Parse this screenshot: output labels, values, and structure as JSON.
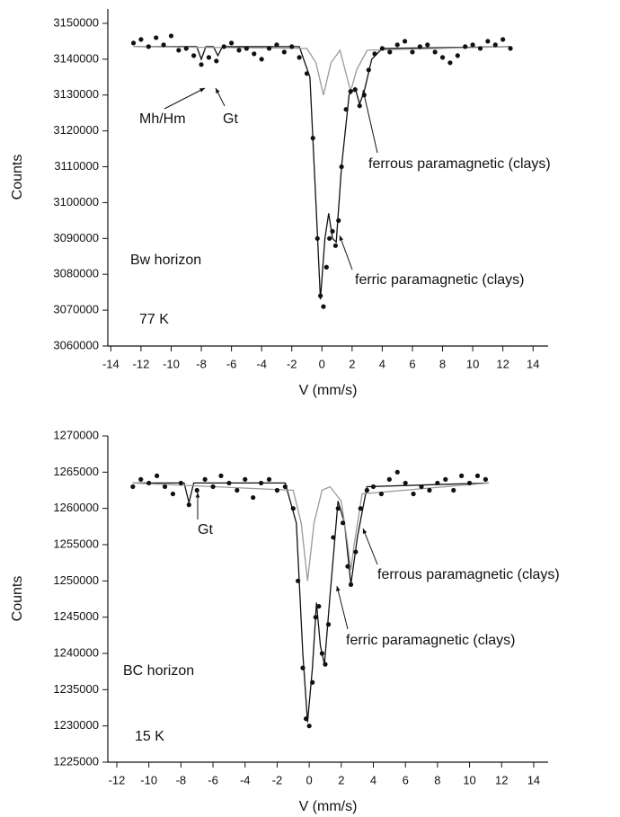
{
  "chart_data": [
    {
      "type": "scatter",
      "x_label": "V (mm/s)",
      "y_label": "Counts",
      "xlim": [
        -14.2,
        15
      ],
      "ylim": [
        3060000,
        3154000
      ],
      "xticks": [
        -14,
        -12,
        -10,
        -8,
        -6,
        -4,
        -2,
        0,
        2,
        4,
        6,
        8,
        10,
        12,
        14
      ],
      "yticks": [
        3060000,
        3070000,
        3080000,
        3090000,
        3100000,
        3110000,
        3120000,
        3130000,
        3140000,
        3150000
      ],
      "annotations": [
        "Mh/Hm",
        "Gt",
        "ferrous paramagnetic (clays)",
        "ferric paramagnetic (clays)",
        "Bw horizon",
        "77 K"
      ],
      "series": [
        {
          "color": "#111111",
          "x": [
            -12.5,
            -12,
            -11.5,
            -11,
            -10.5,
            -10,
            -9.5,
            -9,
            -8.5,
            -8,
            -7.5,
            -7,
            -6.5,
            -6,
            -5.5,
            -5,
            -4.5,
            -4,
            -3.5,
            -3,
            -2.5,
            -2,
            -1.5,
            -1,
            -0.6,
            -0.3,
            -0.1,
            0.1,
            0.3,
            0.5,
            0.7,
            0.9,
            1.1,
            1.3,
            1.6,
            1.9,
            2.2,
            2.5,
            2.8,
            3.1,
            3.5,
            4,
            4.5,
            5,
            5.5,
            6,
            6.5,
            7,
            7.5,
            8,
            8.5,
            9,
            9.5,
            10,
            10.5,
            11,
            11.5,
            12,
            12.5
          ],
          "values": [
            3144500,
            3145500,
            3143500,
            3146000,
            3144000,
            3146500,
            3142500,
            3143000,
            3141000,
            3138500,
            3140500,
            3139500,
            3143500,
            3144500,
            3142500,
            3143000,
            3141500,
            3140000,
            3143000,
            3144000,
            3142000,
            3143500,
            3140500,
            3136000,
            3118000,
            3090000,
            3074000,
            3071000,
            3082000,
            3090000,
            3092000,
            3088000,
            3095000,
            3110000,
            3126000,
            3131000,
            3131500,
            3127000,
            3130000,
            3137000,
            3141500,
            3143000,
            3142000,
            3144000,
            3145000,
            3142000,
            3143500,
            3144000,
            3142000,
            3140500,
            3139000,
            3141000,
            3143500,
            3144000,
            3143000,
            3145000,
            3144000,
            3145500,
            3143000
          ]
        },
        {
          "color": "#111111",
          "line": true,
          "x": [
            -12.5,
            -8.3,
            -8,
            -7.7,
            -7.2,
            -6.9,
            -6.6,
            -1.5,
            -0.8,
            -0.4,
            -0.1,
            0.2,
            0.45,
            0.7,
            0.95,
            1.3,
            1.8,
            2.2,
            2.5,
            2.8,
            3.3,
            4,
            12.5
          ],
          "values": [
            3143500,
            3143500,
            3140000,
            3143500,
            3143500,
            3141000,
            3143500,
            3143500,
            3135000,
            3100000,
            3073000,
            3090000,
            3097000,
            3090000,
            3089000,
            3110000,
            3130000,
            3132000,
            3127500,
            3131000,
            3140000,
            3143000,
            3143500
          ]
        },
        {
          "color": "#9a9a9a",
          "line": true,
          "x": [
            -12.5,
            -1,
            -0.4,
            0.1,
            0.6,
            1.2,
            1.6,
            1.9,
            2.3,
            3,
            12.5
          ],
          "values": [
            3143500,
            3143000,
            3139000,
            3130000,
            3139000,
            3142500,
            3136000,
            3131000,
            3137000,
            3142500,
            3143500
          ]
        }
      ]
    },
    {
      "type": "scatter",
      "x_label": "V (mm/s)",
      "y_label": "Counts",
      "xlim": [
        -12.56,
        14.9
      ],
      "ylim": [
        1225000,
        1270000
      ],
      "xticks": [
        -12,
        -10,
        -8,
        -6,
        -4,
        -2,
        0,
        2,
        4,
        6,
        8,
        10,
        12,
        14
      ],
      "yticks": [
        1225000,
        1230000,
        1235000,
        1240000,
        1245000,
        1250000,
        1255000,
        1260000,
        1265000,
        1270000
      ],
      "annotations": [
        "Gt",
        "ferrous paramagnetic (clays)",
        "ferric paramagnetic (clays)",
        "BC horizon",
        "15 K"
      ],
      "series": [
        {
          "color": "#111111",
          "x": [
            -11,
            -10.5,
            -10,
            -9.5,
            -9,
            -8.5,
            -8,
            -7.5,
            -7,
            -6.5,
            -6,
            -5.5,
            -5,
            -4.5,
            -4,
            -3.5,
            -3,
            -2.5,
            -2,
            -1.5,
            -1,
            -0.7,
            -0.4,
            -0.2,
            0,
            0.2,
            0.4,
            0.6,
            0.8,
            1,
            1.2,
            1.5,
            1.8,
            2.1,
            2.4,
            2.6,
            2.9,
            3.2,
            3.6,
            4,
            4.5,
            5,
            5.5,
            6,
            6.5,
            7,
            7.5,
            8,
            8.5,
            9,
            9.5,
            10,
            10.5,
            11
          ],
          "values": [
            1263000,
            1264000,
            1263500,
            1264500,
            1263000,
            1262000,
            1263500,
            1260500,
            1262500,
            1264000,
            1263000,
            1264500,
            1263500,
            1262500,
            1264000,
            1261500,
            1263500,
            1264000,
            1262500,
            1263000,
            1260000,
            1250000,
            1238000,
            1231000,
            1230000,
            1236000,
            1245000,
            1246500,
            1240000,
            1238500,
            1244000,
            1256000,
            1260000,
            1258000,
            1252000,
            1249500,
            1254000,
            1260000,
            1262500,
            1263000,
            1262000,
            1264000,
            1265000,
            1263500,
            1262000,
            1263000,
            1262500,
            1263500,
            1264000,
            1262500,
            1264500,
            1263500,
            1264500,
            1264000
          ]
        },
        {
          "color": "#111111",
          "line": true,
          "x": [
            -11,
            -7.8,
            -7.5,
            -7.2,
            -1.5,
            -0.8,
            -0.4,
            -0.1,
            0.2,
            0.45,
            0.7,
            0.95,
            1.3,
            1.8,
            2.2,
            2.6,
            3,
            3.6,
            11.2
          ],
          "values": [
            1263500,
            1263500,
            1260800,
            1263500,
            1263500,
            1258000,
            1240000,
            1230500,
            1238000,
            1247000,
            1241000,
            1238500,
            1248000,
            1261000,
            1258000,
            1249500,
            1256000,
            1263000,
            1263500
          ]
        },
        {
          "color": "#9a9a9a",
          "line": true,
          "x": [
            -11,
            -1,
            -0.5,
            -0.1,
            0.3,
            0.8,
            1.3,
            2,
            2.4,
            2.6,
            2.8,
            3.3,
            11.2
          ],
          "values": [
            1263500,
            1262500,
            1258000,
            1250000,
            1258000,
            1262500,
            1263000,
            1261000,
            1255000,
            1251500,
            1255000,
            1262000,
            1263500
          ]
        }
      ]
    }
  ]
}
